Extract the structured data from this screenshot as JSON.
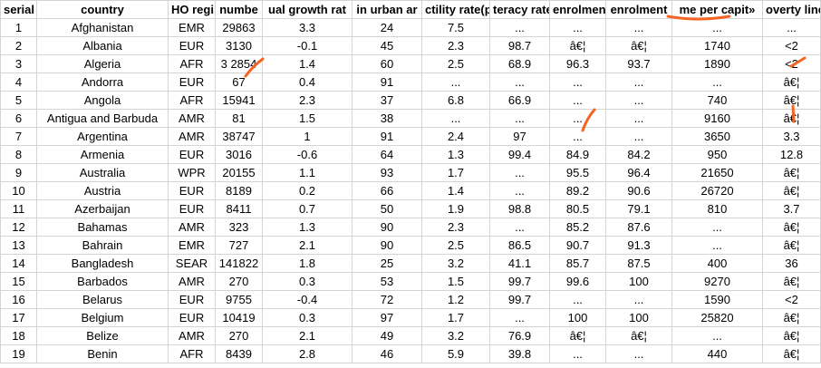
{
  "columns": [
    "serial",
    "country",
    "HO regi",
    "numbe",
    "ual growth rat",
    "in urban ar",
    "ctility rate(pe",
    "teracy rate(",
    "enrolmen",
    "enrolment",
    "me per capit»",
    "overty line(% v"
  ],
  "rows": [
    [
      "1",
      "Afghanistan",
      "EMR",
      "29863",
      "3.3",
      "24",
      "7.5",
      "...",
      "...",
      "...",
      "...",
      "..."
    ],
    [
      "2",
      "Albania",
      "EUR",
      "3130",
      "-0.1",
      "45",
      "2.3",
      "98.7",
      "â€¦",
      "â€¦",
      "1740",
      "<2"
    ],
    [
      "3",
      "Algeria",
      "AFR",
      "3 2854",
      "1.4",
      "60",
      "2.5",
      "68.9",
      "96.3",
      "93.7",
      "1890",
      "<2"
    ],
    [
      "4",
      "Andorra",
      "EUR",
      "67",
      "0.4",
      "91",
      "...",
      "...",
      "...",
      "...",
      "...",
      "â€¦"
    ],
    [
      "5",
      "Angola",
      "AFR",
      "15941",
      "2.3",
      "37",
      "6.8",
      "66.9",
      "...",
      "...",
      "740",
      "â€¦"
    ],
    [
      "6",
      "Antigua and Barbuda",
      "AMR",
      "81",
      "1.5",
      "38",
      "...",
      "...",
      "...",
      "...",
      "9160",
      "â€¦"
    ],
    [
      "7",
      "Argentina",
      "AMR",
      "38747",
      "1",
      "91",
      "2.4",
      "97",
      "...",
      "...",
      "3650",
      "3.3"
    ],
    [
      "8",
      "Armenia",
      "EUR",
      "3016",
      "-0.6",
      "64",
      "1.3",
      "99.4",
      "84.9",
      "84.2",
      "950",
      "12.8"
    ],
    [
      "9",
      "Australia",
      "WPR",
      "20155",
      "1.1",
      "93",
      "1.7",
      "...",
      "95.5",
      "96.4",
      "21650",
      "â€¦"
    ],
    [
      "10",
      "Austria",
      "EUR",
      "8189",
      "0.2",
      "66",
      "1.4",
      "...",
      "89.2",
      "90.6",
      "26720",
      "â€¦"
    ],
    [
      "11",
      "Azerbaijan",
      "EUR",
      "8411",
      "0.7",
      "50",
      "1.9",
      "98.8",
      "80.5",
      "79.1",
      "810",
      "3.7"
    ],
    [
      "12",
      "Bahamas",
      "AMR",
      "323",
      "1.3",
      "90",
      "2.3",
      "...",
      "85.2",
      "87.6",
      "...",
      "â€¦"
    ],
    [
      "13",
      "Bahrain",
      "EMR",
      "727",
      "2.1",
      "90",
      "2.5",
      "86.5",
      "90.7",
      "91.3",
      "...",
      "â€¦"
    ],
    [
      "14",
      "Bangladesh",
      "SEAR",
      "141822",
      "1.8",
      "25",
      "3.2",
      "41.1",
      "85.7",
      "87.5",
      "400",
      "36"
    ],
    [
      "15",
      "Barbados",
      "AMR",
      "270",
      "0.3",
      "53",
      "1.5",
      "99.7",
      "99.6",
      "100",
      "9270",
      "â€¦"
    ],
    [
      "16",
      "Belarus",
      "EUR",
      "9755",
      "-0.4",
      "72",
      "1.2",
      "99.7",
      "...",
      "...",
      "1590",
      "<2"
    ],
    [
      "17",
      "Belgium",
      "EUR",
      "10419",
      "0.3",
      "97",
      "1.7",
      "...",
      "100",
      "100",
      "25820",
      "â€¦"
    ],
    [
      "18",
      "Belize",
      "AMR",
      "270",
      "2.1",
      "49",
      "3.2",
      "76.9",
      "â€¦",
      "â€¦",
      "...",
      "â€¦"
    ],
    [
      "19",
      "Benin",
      "AFR",
      "8439",
      "2.8",
      "46",
      "5.9",
      "39.8",
      "...",
      "...",
      "440",
      "â€¦"
    ]
  ],
  "annotation_color": "#f26522"
}
